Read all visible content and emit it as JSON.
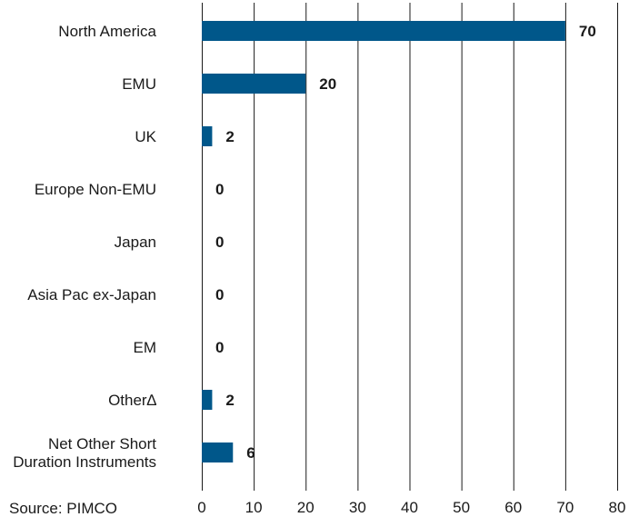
{
  "chart_data": {
    "type": "bar",
    "orientation": "horizontal",
    "categories": [
      [
        "North America"
      ],
      [
        "EMU"
      ],
      [
        "UK"
      ],
      [
        "Europe Non-EMU"
      ],
      [
        "Japan"
      ],
      [
        "Asia Pac ex-Japan"
      ],
      [
        "EM"
      ],
      [
        "Other∆"
      ],
      [
        "Net Other Short",
        "Duration Instruments"
      ]
    ],
    "values": [
      70,
      20,
      2,
      0,
      0,
      0,
      0,
      2,
      6
    ],
    "data_labels": [
      "70",
      "20",
      "2",
      "0",
      "0",
      "0",
      "0",
      "2",
      "6"
    ],
    "xlim": [
      0,
      80
    ],
    "xticks": [
      0,
      10,
      20,
      30,
      40,
      50,
      60,
      70,
      80
    ],
    "grid": "vertical",
    "bar_color": "#00578a",
    "grid_color": "#1a1a1a"
  },
  "source": "Source: PIMCO"
}
